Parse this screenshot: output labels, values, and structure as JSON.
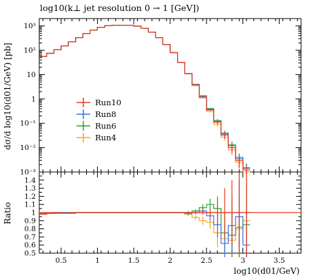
{
  "chart_data": {
    "type": "line",
    "title": "log10(k⊥ jet resolution 0 → 1 [GeV])",
    "xlabel": "log10(d01/GeV)",
    "ylabel": "dσ/d log10(d01/GeV) [pb]",
    "ratio_label": "Ratio",
    "xlim": [
      0.2,
      3.8
    ],
    "x_ticks": [
      0.5,
      1,
      1.5,
      2,
      2.5,
      3,
      3.5
    ],
    "x_tick_labels": [
      "0.5",
      "1",
      "1.5",
      "2",
      "2.5",
      "3",
      "3.5"
    ],
    "y_scale": "log",
    "ylim": [
      0.001,
      2000
    ],
    "y_ticks": [
      0.001,
      0.01,
      0.1,
      1,
      10,
      100,
      1000
    ],
    "y_tick_labels": [
      "10⁻³",
      "10⁻²",
      "10⁻¹",
      "1",
      "10",
      "10²",
      "10³"
    ],
    "ratio_ylim": [
      0.5,
      1.5
    ],
    "ratio_ticks": [
      0.5,
      0.6,
      0.7,
      0.8,
      0.9,
      1,
      1.1,
      1.2,
      1.3,
      1.4
    ],
    "ratio_tick_labels": [
      "0.5",
      "0.6",
      "0.7",
      "0.8",
      "0.9",
      "1",
      "1.1",
      "1.2",
      "1.3",
      "1.4"
    ],
    "bin_edges": [
      0.2,
      0.3,
      0.4,
      0.5,
      0.6,
      0.7,
      0.8,
      0.9,
      1.0,
      1.1,
      1.2,
      1.3,
      1.4,
      1.5,
      1.6,
      1.7,
      1.8,
      1.9,
      2.0,
      2.1,
      2.2,
      2.3,
      2.4,
      2.5,
      2.6,
      2.7,
      2.8,
      2.9,
      3.0,
      3.1
    ],
    "legend_position": "middle-left",
    "series": [
      {
        "name": "Run10",
        "color": "#e8381e",
        "values": [
          55,
          75,
          105,
          150,
          220,
          330,
          480,
          680,
          880,
          1020,
          1070,
          1060,
          1050,
          980,
          800,
          560,
          330,
          170,
          80,
          32,
          11,
          3.8,
          1.2,
          0.35,
          0.11,
          0.033,
          0.01,
          0.003,
          0.0012
        ],
        "ratio": [
          0.98,
          0.99,
          1.0,
          0.99,
          1.0,
          1.0,
          1.0,
          1.0,
          1.0,
          1.0,
          1.0,
          1.0,
          1.0,
          1.0,
          1.0,
          1.0,
          1.0,
          1.0,
          1.0,
          1.0,
          1.0,
          1.0,
          1.0,
          1.0,
          1.0,
          1.0,
          1.0,
          1.0,
          1.0
        ],
        "ratio_err": [
          0.01,
          0.01,
          0.01,
          0.01,
          0.01,
          0.01,
          0.01,
          0.01,
          0.01,
          0.01,
          0.01,
          0.01,
          0.01,
          0.01,
          0.01,
          0.01,
          0.01,
          0.01,
          0.01,
          0.01,
          0.01,
          0.02,
          0.03,
          0.05,
          0.15,
          0.3,
          0.4,
          0.5,
          0.6
        ]
      },
      {
        "name": "Run8",
        "color": "#3f6fe0",
        "values": [
          55,
          75,
          105,
          150,
          220,
          330,
          480,
          680,
          880,
          1020,
          1070,
          1060,
          1050,
          980,
          800,
          560,
          330,
          170,
          80,
          32,
          11,
          3.9,
          1.3,
          0.37,
          0.12,
          0.036,
          0.012,
          0.0035,
          0.0014
        ],
        "ratio": [
          0.99,
          0.99,
          1.0,
          1.0,
          1.0,
          1.0,
          1.0,
          1.0,
          1.0,
          1.0,
          1.0,
          1.0,
          1.0,
          1.0,
          1.0,
          1.0,
          1.0,
          1.0,
          1.0,
          1.0,
          1.0,
          1.0,
          1.02,
          0.96,
          0.85,
          0.62,
          0.84,
          0.95,
          0.6
        ],
        "ratio_err": [
          0.01,
          0.01,
          0.01,
          0.01,
          0.01,
          0.01,
          0.01,
          0.01,
          0.01,
          0.01,
          0.01,
          0.01,
          0.01,
          0.01,
          0.01,
          0.01,
          0.01,
          0.01,
          0.01,
          0.01,
          0.02,
          0.02,
          0.03,
          0.06,
          0.15,
          0.25,
          0.35,
          0.45,
          0.5
        ]
      },
      {
        "name": "Run6",
        "color": "#22a32a",
        "values": [
          55,
          75,
          105,
          150,
          220,
          330,
          480,
          680,
          880,
          1020,
          1070,
          1060,
          1050,
          980,
          800,
          560,
          330,
          170,
          80,
          32,
          11,
          4.0,
          1.35,
          0.4,
          0.13,
          0.04,
          0.013,
          0.004,
          0.0015
        ],
        "ratio": [
          0.98,
          0.99,
          0.99,
          1.0,
          0.99,
          1.0,
          1.0,
          1.0,
          1.0,
          1.0,
          1.0,
          1.0,
          1.0,
          1.0,
          1.0,
          1.0,
          1.0,
          1.0,
          1.0,
          1.0,
          0.99,
          1.02,
          1.06,
          1.1,
          1.05,
          0.75,
          0.72,
          0.82,
          0.85
        ],
        "ratio_err": [
          0.01,
          0.01,
          0.01,
          0.01,
          0.01,
          0.01,
          0.01,
          0.01,
          0.01,
          0.01,
          0.01,
          0.01,
          0.01,
          0.01,
          0.01,
          0.01,
          0.01,
          0.01,
          0.01,
          0.01,
          0.02,
          0.02,
          0.04,
          0.07,
          0.15,
          0.25,
          0.35,
          0.45,
          0.5
        ]
      },
      {
        "name": "Run4",
        "color": "#f5a623",
        "values": [
          55,
          75,
          105,
          150,
          220,
          330,
          480,
          680,
          880,
          1020,
          1070,
          1060,
          1050,
          980,
          800,
          560,
          330,
          170,
          80,
          32,
          11,
          3.5,
          1.1,
          0.3,
          0.09,
          0.027,
          0.008,
          0.0025,
          0.001
        ],
        "ratio": [
          0.99,
          0.99,
          1.0,
          1.0,
          1.0,
          1.0,
          1.0,
          1.0,
          1.0,
          1.0,
          1.0,
          1.0,
          1.0,
          1.0,
          1.0,
          1.0,
          1.0,
          1.0,
          1.0,
          1.0,
          0.98,
          0.94,
          0.9,
          0.88,
          0.75,
          0.68,
          0.66,
          0.8,
          0.9
        ],
        "ratio_err": [
          0.01,
          0.01,
          0.01,
          0.01,
          0.01,
          0.01,
          0.01,
          0.01,
          0.01,
          0.01,
          0.01,
          0.01,
          0.01,
          0.01,
          0.01,
          0.01,
          0.01,
          0.01,
          0.01,
          0.01,
          0.02,
          0.03,
          0.05,
          0.08,
          0.18,
          0.3,
          0.4,
          0.5,
          0.55
        ]
      }
    ]
  }
}
